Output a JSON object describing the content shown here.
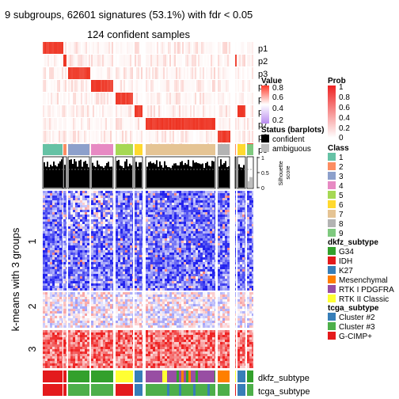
{
  "title": "9 subgroups, 62601 signatures (53.1%) with fdr < 0.05",
  "subtitle": "124 confident samples",
  "row_axis_label": "k-means with 3 groups",
  "row_groups": [
    "1",
    "2",
    "3"
  ],
  "prob_rows": [
    "p1",
    "p2",
    "p3",
    "p4",
    "p5",
    "p6",
    "p7",
    "p8",
    "p9"
  ],
  "silhouette_label": [
    "Silhouette",
    "score"
  ],
  "silhouette_ticks": [
    "1",
    "0.5",
    "0"
  ],
  "bottom_tracks": [
    "dkfz_subtype",
    "tcga_subtype"
  ],
  "colors": {
    "heat_low": "#2222ee",
    "heat_mid": "#ffffff",
    "heat_high": "#ee2222",
    "prob_high": "#ee3322"
  },
  "legends": {
    "value": {
      "title": "Value",
      "ticks": [
        "0.8",
        "0.6",
        "0.4",
        "0.2"
      ],
      "colors": [
        "#ff3a2a",
        "#ffffff",
        "#b98cf0"
      ]
    },
    "prob": {
      "title": "Prob",
      "ticks": [
        "1",
        "0.8",
        "0.6",
        "0.4",
        "0.2",
        "0"
      ],
      "colors": [
        "#ee2222",
        "#ffffff"
      ]
    },
    "status": {
      "title": "Status (barplots)",
      "items": [
        {
          "label": "confident",
          "color": "#000000"
        },
        {
          "label": "ambiguous",
          "color": "#bebebe"
        }
      ]
    },
    "class": {
      "title": "Class",
      "items": [
        {
          "label": "1",
          "color": "#66c2a5"
        },
        {
          "label": "2",
          "color": "#fc8d62"
        },
        {
          "label": "3",
          "color": "#8da0cb"
        },
        {
          "label": "4",
          "color": "#e78ac3"
        },
        {
          "label": "5",
          "color": "#a6d854"
        },
        {
          "label": "6",
          "color": "#ffd92f"
        },
        {
          "label": "7",
          "color": "#e5c494"
        },
        {
          "label": "8",
          "color": "#b3b3b3"
        },
        {
          "label": "9",
          "color": "#7fc97f"
        }
      ]
    },
    "dkfz": {
      "title": "dkfz_subtype",
      "items": [
        {
          "label": "G34",
          "color": "#33a02c"
        },
        {
          "label": "IDH",
          "color": "#e31a1c"
        },
        {
          "label": "K27",
          "color": "#377eb8"
        },
        {
          "label": "Mesenchymal",
          "color": "#ff7f00"
        },
        {
          "label": "RTK I PDGFRA",
          "color": "#984ea3"
        },
        {
          "label": "RTK II Classic",
          "color": "#ffff33"
        }
      ]
    },
    "tcga": {
      "title": "tcga_subtype",
      "items": [
        {
          "label": "Cluster #2",
          "color": "#377eb8"
        },
        {
          "label": "Cluster #3",
          "color": "#4daf4a"
        },
        {
          "label": "G-CIMP+",
          "color": "#e41a1c"
        }
      ]
    }
  },
  "chart_data": {
    "type": "heatmap",
    "title": "9 subgroups, 62601 signatures (53.1%) with fdr < 0.05",
    "subtitle": "124 confident samples",
    "ylabel": "k-means with 3 groups",
    "row_groups": [
      "1",
      "2",
      "3"
    ],
    "column_classes": [
      "1",
      "2",
      "3",
      "4",
      "5",
      "6",
      "7",
      "8",
      "9"
    ],
    "silhouette_range": [
      0,
      1
    ],
    "value_range": [
      0.2,
      0.8
    ],
    "prob_range": [
      0,
      1
    ]
  }
}
